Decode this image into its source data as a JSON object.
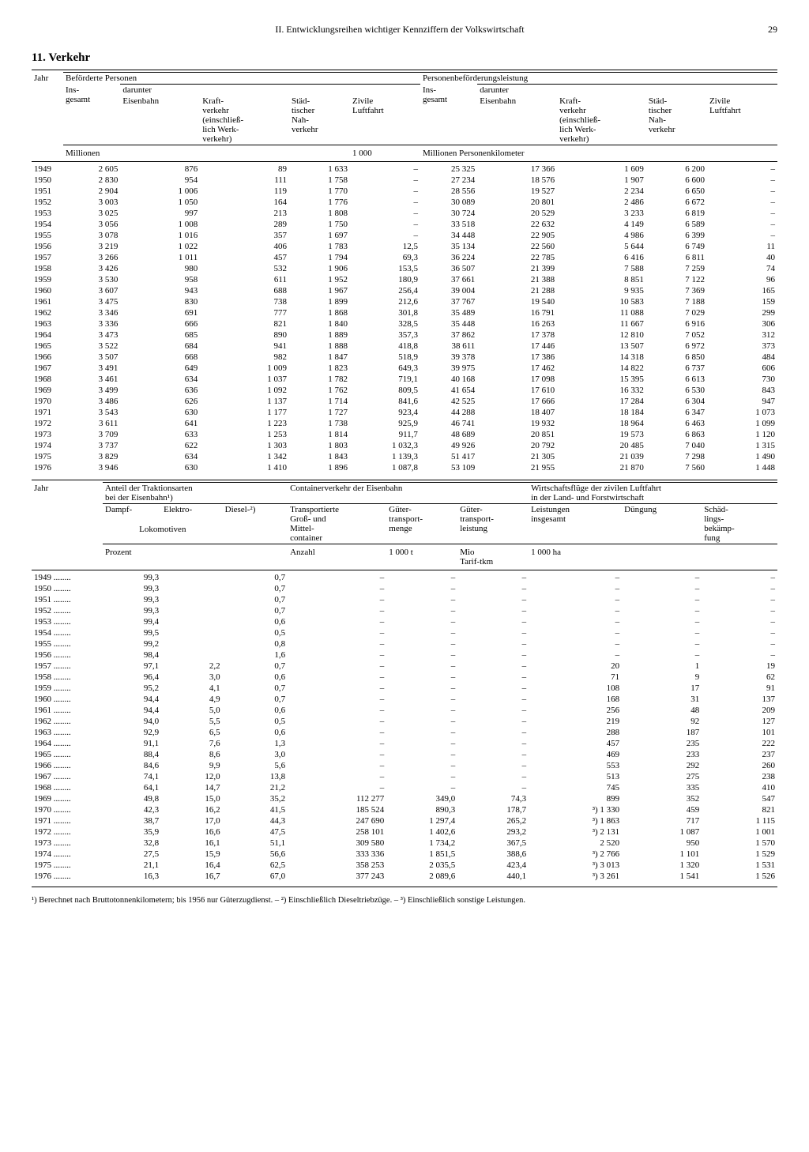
{
  "page": {
    "running_head": "II. Entwicklungsreihen wichtiger Kennziffern der Volkswirtschaft",
    "number": "29",
    "section": "11. Verkehr"
  },
  "t1": {
    "h_jahr": "Jahr",
    "h_bef": "Beförderte Personen",
    "h_perf": "Personenbeförderungsleistung",
    "h_insg": "Ins-\ngesamt",
    "h_darunter": "darunter",
    "h_eisen": "Eisenbahn",
    "h_kraft": "Kraft-\nverkehr\n(einschließ-\nlich Werk-\nverkehr)",
    "h_stadt": "Städ-\ntischer\nNah-\nverkehr",
    "h_zivil": "Zivile\nLuftfahrt",
    "u_mill": "Millionen",
    "u_1000": "1 000",
    "u_mpkm": "Millionen Personenkilometer",
    "rows": [
      [
        "1949",
        "2 605",
        "876",
        "89",
        "1 633",
        "–",
        "25 325",
        "17 366",
        "1 609",
        "6 200",
        "–"
      ],
      [
        "1950",
        "2 830",
        "954",
        "111",
        "1 758",
        "–",
        "27 234",
        "18 576",
        "1 907",
        "6 600",
        "–"
      ],
      [
        "1951",
        "2 904",
        "1 006",
        "119",
        "1 770",
        "–",
        "28 556",
        "19 527",
        "2 234",
        "6 650",
        "–"
      ],
      [
        "1952",
        "3 003",
        "1 050",
        "164",
        "1 776",
        "–",
        "30 089",
        "20 801",
        "2 486",
        "6 672",
        "–"
      ],
      [
        "1953",
        "3 025",
        "997",
        "213",
        "1 808",
        "–",
        "30 724",
        "20 529",
        "3 233",
        "6 819",
        "–"
      ],
      [
        "1954",
        "3 056",
        "1 008",
        "289",
        "1 750",
        "–",
        "33 518",
        "22 632",
        "4 149",
        "6 589",
        "–"
      ],
      [
        "1955",
        "3 078",
        "1 016",
        "357",
        "1 697",
        "–",
        "34 448",
        "22 905",
        "4 986",
        "6 399",
        "–"
      ],
      [
        "1956",
        "3 219",
        "1 022",
        "406",
        "1 783",
        "12,5",
        "35 134",
        "22 560",
        "5 644",
        "6 749",
        "11"
      ],
      [
        "1957",
        "3 266",
        "1 011",
        "457",
        "1 794",
        "69,3",
        "36 224",
        "22 785",
        "6 416",
        "6 811",
        "40"
      ],
      [
        "1958",
        "3 426",
        "980",
        "532",
        "1 906",
        "153,5",
        "36 507",
        "21 399",
        "7 588",
        "7 259",
        "74"
      ],
      [
        "1959",
        "3 530",
        "958",
        "611",
        "1 952",
        "180,9",
        "37 661",
        "21 388",
        "8 851",
        "7 122",
        "96"
      ],
      [
        "1960",
        "3 607",
        "943",
        "688",
        "1 967",
        "256,4",
        "39 004",
        "21 288",
        "9 935",
        "7 369",
        "165"
      ],
      [
        "1961",
        "3 475",
        "830",
        "738",
        "1 899",
        "212,6",
        "37 767",
        "19 540",
        "10 583",
        "7 188",
        "159"
      ],
      [
        "1962",
        "3 346",
        "691",
        "777",
        "1 868",
        "301,8",
        "35 489",
        "16 791",
        "11 088",
        "7 029",
        "299"
      ],
      [
        "1963",
        "3 336",
        "666",
        "821",
        "1 840",
        "328,5",
        "35 448",
        "16 263",
        "11 667",
        "6 916",
        "306"
      ],
      [
        "1964",
        "3 473",
        "685",
        "890",
        "1 889",
        "357,3",
        "37 862",
        "17 378",
        "12 810",
        "7 052",
        "312"
      ],
      [
        "1965",
        "3 522",
        "684",
        "941",
        "1 888",
        "418,8",
        "38 611",
        "17 446",
        "13 507",
        "6 972",
        "373"
      ],
      [
        "1966",
        "3 507",
        "668",
        "982",
        "1 847",
        "518,9",
        "39 378",
        "17 386",
        "14 318",
        "6 850",
        "484"
      ],
      [
        "1967",
        "3 491",
        "649",
        "1 009",
        "1 823",
        "649,3",
        "39 975",
        "17 462",
        "14 822",
        "6 737",
        "606"
      ],
      [
        "1968",
        "3 461",
        "634",
        "1 037",
        "1 782",
        "719,1",
        "40 168",
        "17 098",
        "15 395",
        "6 613",
        "730"
      ],
      [
        "1969",
        "3 499",
        "636",
        "1 092",
        "1 762",
        "809,5",
        "41 654",
        "17 610",
        "16 332",
        "6 530",
        "843"
      ],
      [
        "1970",
        "3 486",
        "626",
        "1 137",
        "1 714",
        "841,6",
        "42 525",
        "17 666",
        "17 284",
        "6 304",
        "947"
      ],
      [
        "1971",
        "3 543",
        "630",
        "1 177",
        "1 727",
        "923,4",
        "44 288",
        "18 407",
        "18 184",
        "6 347",
        "1 073"
      ],
      [
        "1972",
        "3 611",
        "641",
        "1 223",
        "1 738",
        "925,9",
        "46 741",
        "19 932",
        "18 964",
        "6 463",
        "1 099"
      ],
      [
        "1973",
        "3 709",
        "633",
        "1 253",
        "1 814",
        "911,7",
        "48 689",
        "20 851",
        "19 573",
        "6 863",
        "1 120"
      ],
      [
        "1974",
        "3 737",
        "622",
        "1 303",
        "1 803",
        "1 032,3",
        "49 926",
        "20 792",
        "20 485",
        "7 040",
        "1 315"
      ],
      [
        "1975",
        "3 829",
        "634",
        "1 342",
        "1 843",
        "1 139,3",
        "51 417",
        "21 305",
        "21 039",
        "7 298",
        "1 490"
      ],
      [
        "1976",
        "3 946",
        "630",
        "1 410",
        "1 896",
        "1 087,8",
        "53 109",
        "21 955",
        "21 870",
        "7 560",
        "1 448"
      ]
    ]
  },
  "t2": {
    "h_jahr": "Jahr",
    "h_trak": "Anteil der Traktionsarten\nbei der Eisenbahn¹)",
    "h_cont": "Containerverkehr der Eisenbahn",
    "h_wirt": "Wirtschaftsflüge der zivilen Luftfahrt\nin der Land- und Forstwirtschaft",
    "h_dampf": "Dampf-",
    "h_elektro": "Elektro-",
    "h_lok": "Lokomotiven",
    "h_diesel": "Diesel-²)",
    "h_trans": "Transportierte\nGroß- und\nMittel-\ncontainer",
    "h_gmenge": "Güter-\ntransport-\nmenge",
    "h_gleist": "Güter-\ntransport-\nleistung",
    "h_leist": "Leistungen\ninsgesamt",
    "h_dung": "Düngung",
    "h_schad": "Schäd-\nlings-\nbekämp-\nfung",
    "u_proz": "Prozent",
    "u_anz": "Anzahl",
    "u_1000t": "1 000 t",
    "u_mio": "Mio\nTarif-tkm",
    "u_1000ha": "1 000 ha",
    "rows": [
      [
        "1949",
        "99,3",
        "",
        "0,7",
        "–",
        "–",
        "–",
        "–",
        "–",
        "–"
      ],
      [
        "1950",
        "99,3",
        "",
        "0,7",
        "–",
        "–",
        "–",
        "–",
        "–",
        "–"
      ],
      [
        "1951",
        "99,3",
        "",
        "0,7",
        "–",
        "–",
        "–",
        "–",
        "–",
        "–"
      ],
      [
        "1952",
        "99,3",
        "",
        "0,7",
        "–",
        "–",
        "–",
        "–",
        "–",
        "–"
      ],
      [
        "1953",
        "99,4",
        "",
        "0,6",
        "–",
        "–",
        "–",
        "–",
        "–",
        "–"
      ],
      [
        "1954",
        "99,5",
        "",
        "0,5",
        "–",
        "–",
        "–",
        "–",
        "–",
        "–"
      ],
      [
        "1955",
        "99,2",
        "",
        "0,8",
        "–",
        "–",
        "–",
        "–",
        "–",
        "–"
      ],
      [
        "1956",
        "98,4",
        "",
        "1,6",
        "–",
        "–",
        "–",
        "–",
        "–",
        "–"
      ],
      [
        "1957",
        "97,1",
        "2,2",
        "0,7",
        "–",
        "–",
        "–",
        "20",
        "1",
        "19"
      ],
      [
        "1958",
        "96,4",
        "3,0",
        "0,6",
        "–",
        "–",
        "–",
        "71",
        "9",
        "62"
      ],
      [
        "1959",
        "95,2",
        "4,1",
        "0,7",
        "–",
        "–",
        "–",
        "108",
        "17",
        "91"
      ],
      [
        "1960",
        "94,4",
        "4,9",
        "0,7",
        "–",
        "–",
        "–",
        "168",
        "31",
        "137"
      ],
      [
        "1961",
        "94,4",
        "5,0",
        "0,6",
        "–",
        "–",
        "–",
        "256",
        "48",
        "209"
      ],
      [
        "1962",
        "94,0",
        "5,5",
        "0,5",
        "–",
        "–",
        "–",
        "219",
        "92",
        "127"
      ],
      [
        "1963",
        "92,9",
        "6,5",
        "0,6",
        "–",
        "–",
        "–",
        "288",
        "187",
        "101"
      ],
      [
        "1964",
        "91,1",
        "7,6",
        "1,3",
        "–",
        "–",
        "–",
        "457",
        "235",
        "222"
      ],
      [
        "1965",
        "88,4",
        "8,6",
        "3,0",
        "–",
        "–",
        "–",
        "469",
        "233",
        "237"
      ],
      [
        "1966",
        "84,6",
        "9,9",
        "5,6",
        "–",
        "–",
        "–",
        "553",
        "292",
        "260"
      ],
      [
        "1967",
        "74,1",
        "12,0",
        "13,8",
        "–",
        "–",
        "–",
        "513",
        "275",
        "238"
      ],
      [
        "1968",
        "64,1",
        "14,7",
        "21,2",
        "–",
        "–",
        "–",
        "745",
        "335",
        "410"
      ],
      [
        "1969",
        "49,8",
        "15,0",
        "35,2",
        "112 277",
        "349,0",
        "74,3",
        "899",
        "352",
        "547"
      ],
      [
        "1970",
        "42,3",
        "16,2",
        "41,5",
        "185 524",
        "890,3",
        "178,7",
        "³) 1 330",
        "459",
        "821"
      ],
      [
        "1971",
        "38,7",
        "17,0",
        "44,3",
        "247 690",
        "1 297,4",
        "265,2",
        "³) 1 863",
        "717",
        "1 115"
      ],
      [
        "1972",
        "35,9",
        "16,6",
        "47,5",
        "258 101",
        "1 402,6",
        "293,2",
        "³) 2 131",
        "1 087",
        "1 001"
      ],
      [
        "1973",
        "32,8",
        "16,1",
        "51,1",
        "309 580",
        "1 734,2",
        "367,5",
        "2 520",
        "950",
        "1 570"
      ],
      [
        "1974",
        "27,5",
        "15,9",
        "56,6",
        "333 336",
        "1 851,5",
        "388,6",
        "³) 2 766",
        "1 101",
        "1 529"
      ],
      [
        "1975",
        "21,1",
        "16,4",
        "62,5",
        "358 253",
        "2 035,5",
        "423,4",
        "³) 3 013",
        "1 320",
        "1 531"
      ],
      [
        "1976",
        "16,3",
        "16,7",
        "67,0",
        "377 243",
        "2 089,6",
        "440,1",
        "³) 3 261",
        "1 541",
        "1 526"
      ]
    ]
  },
  "footnote": "¹) Berechnet nach Bruttotonnenkilometern; bis 1956 nur Güterzugdienst. – ²) Einschließlich Dieseltriebzüge. – ³) Einschließlich sonstige Leistungen."
}
